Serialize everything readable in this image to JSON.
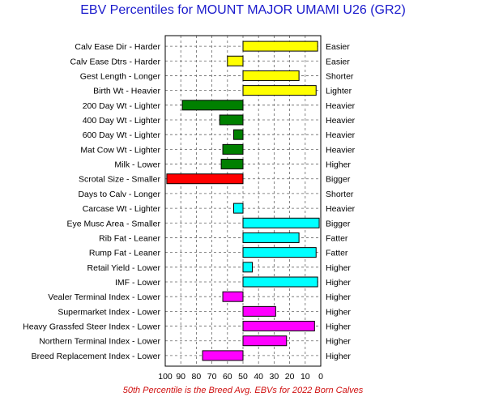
{
  "title": "EBV Percentiles for MOUNT MAJOR UMAMI U26 (GR2)",
  "footnote": "50th Percentile is the Breed Avg. EBVs for 2022 Born Calves",
  "colors": {
    "title": "#1a1acc",
    "footnote": "#d01010",
    "yellow": "#ffff00",
    "green": "#008000",
    "red": "#ff0000",
    "cyan": "#00ffff",
    "magenta": "#ff00ff"
  },
  "chart_data": {
    "type": "bar",
    "orientation": "horizontal",
    "baseline": 50,
    "xlim": [
      100,
      0
    ],
    "xticks": [
      "100",
      "90",
      "80",
      "70",
      "60",
      "50",
      "40",
      "30",
      "20",
      "10",
      "0"
    ],
    "grid": true,
    "categories": [
      "Calv Ease Dir - Harder",
      "Calv Ease Dtrs - Harder",
      "Gest Length - Longer",
      "Birth Wt - Heavier",
      "200 Day Wt - Lighter",
      "400 Day Wt - Lighter",
      "600 Day Wt - Lighter",
      "Mat Cow Wt - Lighter",
      "Milk - Lower",
      "Scrotal Size - Smaller",
      "Days to Calv - Longer",
      "Carcase Wt - Lighter",
      "Eye Musc Area - Smaller",
      "Rib Fat - Leaner",
      "Rump Fat - Leaner",
      "Retail Yield - Lower",
      "IMF - Lower",
      "Vealer Terminal Index - Lower",
      "Supermarket Index - Lower",
      "Heavy Grassfed Steer Index - Lower",
      "Northern Terminal Index - Lower",
      "Breed Replacement Index - Lower"
    ],
    "right_labels": [
      "Easier",
      "Easier",
      "Shorter",
      "Lighter",
      "Heavier",
      "Heavier",
      "Heavier",
      "Heavier",
      "Higher",
      "Bigger",
      "Shorter",
      "Heavier",
      "Bigger",
      "Fatter",
      "Fatter",
      "Higher",
      "Higher",
      "Higher",
      "Higher",
      "Higher",
      "Higher",
      "Higher"
    ],
    "values": [
      2,
      60,
      14,
      3,
      89,
      65,
      56,
      63,
      64,
      99,
      null,
      56,
      1,
      14,
      3,
      44,
      2,
      63,
      29,
      4,
      22,
      76
    ],
    "bar_colors": [
      "yellow",
      "yellow",
      "yellow",
      "yellow",
      "green",
      "green",
      "green",
      "green",
      "green",
      "red",
      "none",
      "cyan",
      "cyan",
      "cyan",
      "cyan",
      "cyan",
      "cyan",
      "magenta",
      "magenta",
      "magenta",
      "magenta",
      "magenta"
    ]
  }
}
